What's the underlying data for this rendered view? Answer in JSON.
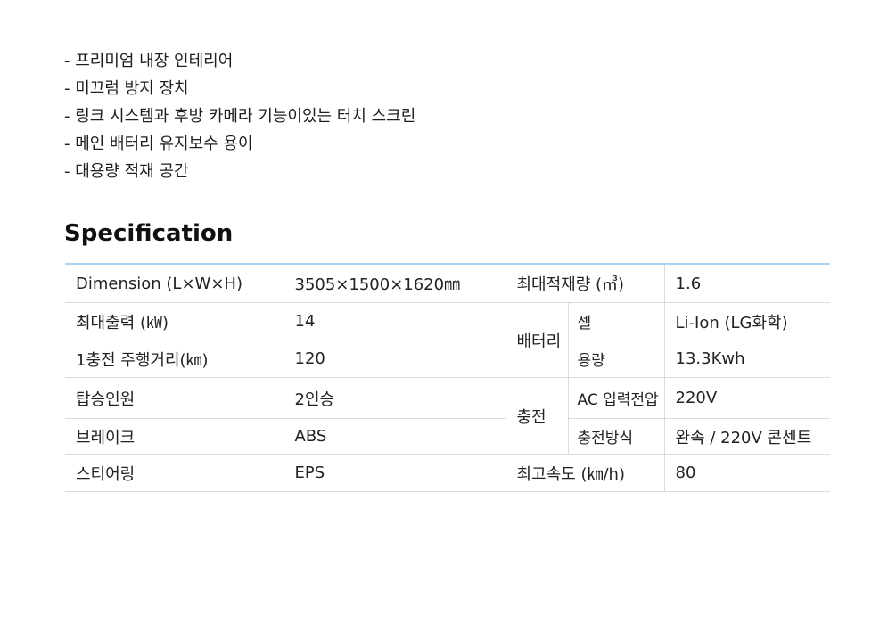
{
  "features": [
    "- 프리미엄 내장 인테리어",
    "- 미끄럼 방지 장치",
    "- 링크 시스템과 후방 카메라 기능이있는 터치 스크린",
    "- 메인 배터리 유지보수 용이",
    "- 대용량 적재 공간"
  ],
  "spec": {
    "title": "Specification",
    "dimension_label": "Dimension (L×W×H)",
    "dimension_value": "3505×1500×1620㎜",
    "max_load_label": "최대적재량 (㎥)",
    "max_load_value": "1.6",
    "max_output_label": "최대출력 (㎾)",
    "max_output_value": "14",
    "battery_label": "배터리",
    "cell_label": "셀",
    "cell_value": "Li-Ion (LG화학)",
    "range_label": "1충전 주행거리(㎞)",
    "range_value": "120",
    "capacity_label": "용량",
    "capacity_value": "13.3Kwh",
    "seats_label": "탑승인원",
    "seats_value": "2인승",
    "charging_label": "충전",
    "ac_voltage_label": "AC 입력전압",
    "ac_voltage_value": "220V",
    "brake_label": "브레이크",
    "brake_value": "ABS",
    "charge_method_label": "충전방식",
    "charge_method_value": "완속 / 220V 콘센트",
    "steering_label": "스티어링",
    "steering_value": "EPS",
    "max_speed_label": "최고속도 (㎞/h)",
    "max_speed_value": "80"
  }
}
